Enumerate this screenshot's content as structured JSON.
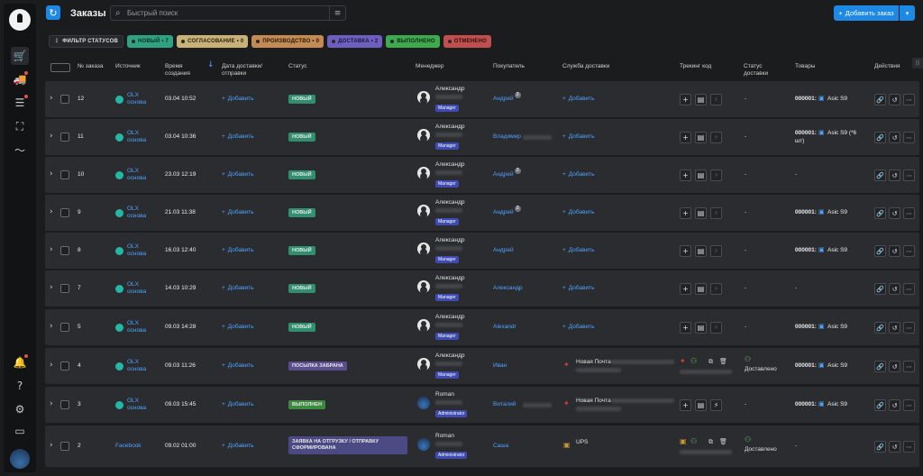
{
  "header": {
    "title": "Заказы",
    "search_placeholder": "Быстрый поиск",
    "add_order_label": "Добавить заказ"
  },
  "filters": [
    {
      "label": "Фильтр статусов",
      "bg": "#26272a",
      "fg": "#dddddd"
    },
    {
      "label": "Новый • 7",
      "bg": "#2fa37f",
      "fg": "#0f2b22"
    },
    {
      "label": "Согласование • 0",
      "bg": "#c9b277",
      "fg": "#2b2413"
    },
    {
      "label": "Производство • 0",
      "bg": "#c48a53",
      "fg": "#2a1a0c"
    },
    {
      "label": "Доставка • 2",
      "bg": "#6e5fbf",
      "fg": "#1b1638"
    },
    {
      "label": "Выполнено",
      "bg": "#3fa94f",
      "fg": "#102812"
    },
    {
      "label": "Отменено",
      "bg": "#c24f4f",
      "fg": "#2d0f0f"
    }
  ],
  "columns": {
    "order_no": "№ заказа",
    "source": "Источник",
    "created": "Время создания",
    "delivery_date": "Дата доставки/ отправки",
    "status": "Статус",
    "manager": "Менеджер",
    "buyer": "Покупатель",
    "delivery_service": "Служба доставки",
    "tracking": "Трекинг код",
    "delivery_status": "Статус доставки",
    "goods": "Товары",
    "actions": "Действия"
  },
  "common": {
    "add": "Добавить",
    "manager_role": "Manager",
    "admin_role": "Administrator",
    "dash": "-",
    "delivered": "Доставлено"
  },
  "rows": [
    {
      "no": "12",
      "source": "OLX",
      "source_sub": "основа",
      "created": "03.04 10:52",
      "status": "Новый",
      "status_color": "#2f8f6f",
      "manager": "Александр",
      "role": "Manager",
      "buyer": "Андрей",
      "buyer_badge": "3",
      "delivery": "Добавить",
      "delivery_status": "-",
      "goods_code": "000001:",
      "goods_name": "Asic S9",
      "goods_extra": ""
    },
    {
      "no": "11",
      "source": "OLX",
      "source_sub": "основа",
      "created": "03.04 10:36",
      "status": "Новый",
      "status_color": "#2f8f6f",
      "manager": "Александр",
      "role": "Manager",
      "buyer": "Владимир",
      "buyer_badge": "",
      "delivery": "Добавить",
      "delivery_status": "-",
      "goods_code": "000001:",
      "goods_name": "Asic S9 (*6",
      "goods_extra": "шт)"
    },
    {
      "no": "10",
      "source": "OLX",
      "source_sub": "основа",
      "created": "23.03 12:19",
      "status": "Новый",
      "status_color": "#2f8f6f",
      "manager": "Александр",
      "role": "Manager",
      "buyer": "Андрей",
      "buyer_badge": "3",
      "delivery": "Добавить",
      "delivery_status": "-",
      "goods_code": "",
      "goods_name": "",
      "goods_extra": ""
    },
    {
      "no": "9",
      "source": "OLX",
      "source_sub": "основа",
      "created": "21.03 11:38",
      "status": "Новый",
      "status_color": "#2f8f6f",
      "manager": "Александр",
      "role": "Manager",
      "buyer": "Андрей",
      "buyer_badge": "3",
      "delivery": "Добавить",
      "delivery_status": "-",
      "goods_code": "000001:",
      "goods_name": "Asic S9",
      "goods_extra": ""
    },
    {
      "no": "8",
      "source": "OLX",
      "source_sub": "основа",
      "created": "16.03 12:40",
      "status": "Новый",
      "status_color": "#2f8f6f",
      "manager": "Александр",
      "role": "Manager",
      "buyer": "Андрей",
      "buyer_badge": "",
      "delivery": "Добавить",
      "delivery_status": "-",
      "goods_code": "000001:",
      "goods_name": "Asic S9",
      "goods_extra": ""
    },
    {
      "no": "7",
      "source": "OLX",
      "source_sub": "основа",
      "created": "14.03 10:29",
      "status": "Новый",
      "status_color": "#2f8f6f",
      "manager": "Александр",
      "role": "Manager",
      "buyer": "Александр",
      "buyer_badge": "",
      "delivery": "Добавить",
      "delivery_status": "-",
      "goods_code": "",
      "goods_name": "",
      "goods_extra": ""
    },
    {
      "no": "5",
      "source": "OLX",
      "source_sub": "основа",
      "created": "09.03 14:28",
      "status": "Новый",
      "status_color": "#2f8f6f",
      "manager": "Александр",
      "role": "Manager",
      "buyer": "Alexandr",
      "buyer_badge": "",
      "delivery": "Добавить",
      "delivery_status": "-",
      "goods_code": "000001:",
      "goods_name": "Asic S9",
      "goods_extra": ""
    },
    {
      "no": "4",
      "source": "OLX",
      "source_sub": "основа",
      "created": "09.03 11:26",
      "status": "Посылка забрана",
      "status_color": "#5b4e8f",
      "manager": "Александр",
      "role": "Manager",
      "buyer": "Иван",
      "buyer_badge": "",
      "delivery": "Новая Почта",
      "delivery_status": "Доставлено",
      "goods_code": "000001:",
      "goods_name": "Asic S9",
      "goods_extra": ""
    },
    {
      "no": "3",
      "source": "OLX",
      "source_sub": "основа",
      "created": "09.03 15:45",
      "status": "Выполнен",
      "status_color": "#3c8a3f",
      "manager": "Roman",
      "role": "Administrator",
      "buyer": "Виталий",
      "buyer_badge": "",
      "delivery": "Новая Почта",
      "delivery_status": "-",
      "goods_code": "000001:",
      "goods_name": "Asic S9",
      "goods_extra": ""
    },
    {
      "no": "2",
      "source": "Facebook",
      "source_sub": "",
      "created": "09.02 01:00",
      "status": "Заявка на отгрузку / отправку сформирована",
      "status_color": "#4c4a84",
      "manager": "Roman",
      "role": "Administrator",
      "buyer": "Саша",
      "buyer_badge": "",
      "delivery": "UPS",
      "delivery_status": "Доставлено",
      "goods_code": "",
      "goods_name": "",
      "goods_extra": ""
    }
  ]
}
